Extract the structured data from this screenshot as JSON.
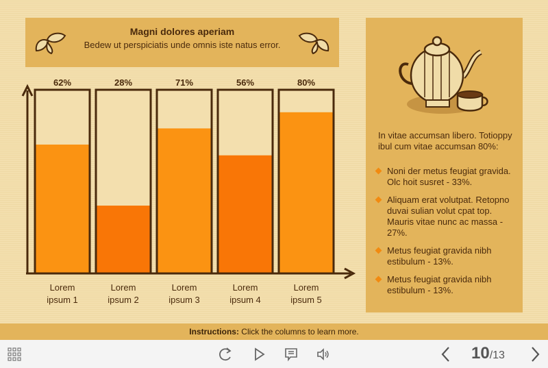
{
  "header": {
    "title": "Magni dolores aperiam",
    "subtitle": "Bedew ut perspiciatis unde omnis iste natus error."
  },
  "chart_data": {
    "type": "bar",
    "categories": [
      "Lorem ipsum 1",
      "Lorem ipsum 2",
      "Lorem ipsum 3",
      "Lorem ipsum 4",
      "Lorem ipsum 5"
    ],
    "category_lines": [
      [
        "Lorem",
        "ipsum 1"
      ],
      [
        "Lorem",
        "ipsum 2"
      ],
      [
        "Lorem",
        "ipsum 3"
      ],
      [
        "Lorem",
        "ipsum 4"
      ],
      [
        "Lorem",
        "ipsum 5"
      ]
    ],
    "values": [
      62,
      28,
      71,
      56,
      80
    ],
    "data_labels": [
      "62%",
      "28%",
      "71%",
      "56%",
      "80%"
    ],
    "colors": [
      "#fb9312",
      "#f97606",
      "#fb9312",
      "#f97606",
      "#fb9312"
    ],
    "ylim": [
      0,
      100
    ],
    "grid": false
  },
  "side": {
    "intro": "In vitae accumsan libero. Totioppy ibul cum vitae accumsan 80%:",
    "items": [
      "Noni der metus feugiat gravida. Olc hoit susret - 33%.",
      "Aliquam erat volutpat. Retopno duvai sulian volut cpat top. Mauris vitae nunc ac massa - 27%.",
      "Metus feugiat gravida nibh estibulum - 13%.",
      "Metus feugiat gravida nibh estibulum - 13%."
    ]
  },
  "instructions": {
    "label": "Instructions:",
    "text": " Click the columns to learn more."
  },
  "player": {
    "current_page": "10",
    "total_pages": "/13"
  },
  "colors": {
    "accent": "#e3b45b",
    "bar_light": "#fb9312",
    "bar_dark": "#f97606",
    "outline": "#4a2a0c"
  }
}
